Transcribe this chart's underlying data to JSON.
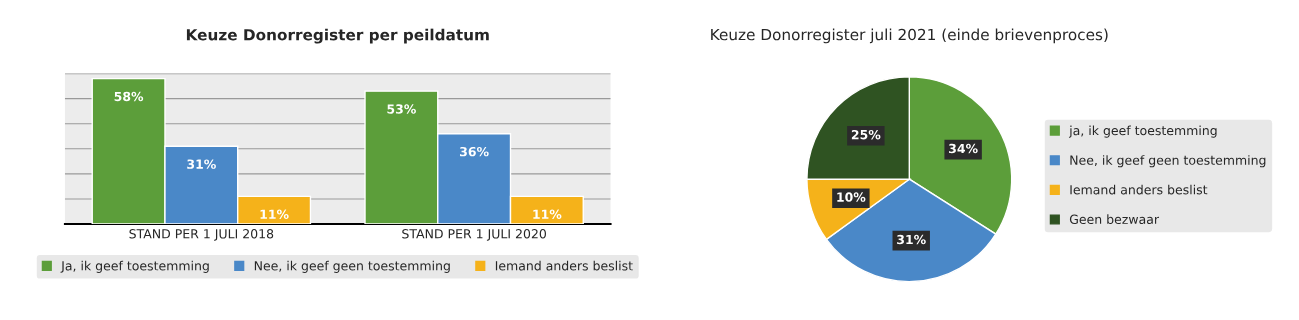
{
  "chart_data": [
    {
      "type": "bar",
      "title": "Keuze Donorregister per peildatum",
      "categories": [
        "STAND PER 1 JULI 2018",
        "STAND PER 1 JULI 2020"
      ],
      "series": [
        {
          "name": "Ja, ik geef toestemming",
          "color": "#5c9e3a",
          "values": [
            58,
            53
          ],
          "value_labels": [
            "58%",
            "53%"
          ]
        },
        {
          "name": "Nee, ik geef geen toestemming",
          "color": "#4a88c8",
          "values": [
            31,
            36
          ],
          "value_labels": [
            "31%",
            "36%"
          ]
        },
        {
          "name": "Iemand anders beslist",
          "color": "#f5b21a",
          "values": [
            11,
            11
          ],
          "value_labels": [
            "11%",
            "11%"
          ]
        }
      ],
      "ylim": [
        0,
        60
      ],
      "yticks": [
        {
          "value": 10,
          "label": null
        },
        {
          "value": 20,
          "label": null
        },
        {
          "value": 30,
          "label": null
        },
        {
          "value": 40,
          "label": null
        },
        {
          "value": 50,
          "label": null
        },
        {
          "value": 60,
          "label": null
        }
      ],
      "tick_labels": "x",
      "grid": "y",
      "legend": "bottom"
    },
    {
      "type": "pie",
      "title": "Keuze Donorregister juli 2021 (einde brievenproces)",
      "categories": [
        "ja, ik geef toestemming",
        "Nee, ik geef geen toestemming",
        "Iemand anders beslist",
        "Geen bezwaar"
      ],
      "values": [
        34,
        31,
        10,
        25
      ],
      "colors": [
        "#5c9e3a",
        "#4a88c8",
        "#f5b21a",
        "#2f5322"
      ],
      "value_labels": [
        "34%",
        "31%",
        "10%",
        "25%"
      ],
      "legend": "right"
    }
  ]
}
